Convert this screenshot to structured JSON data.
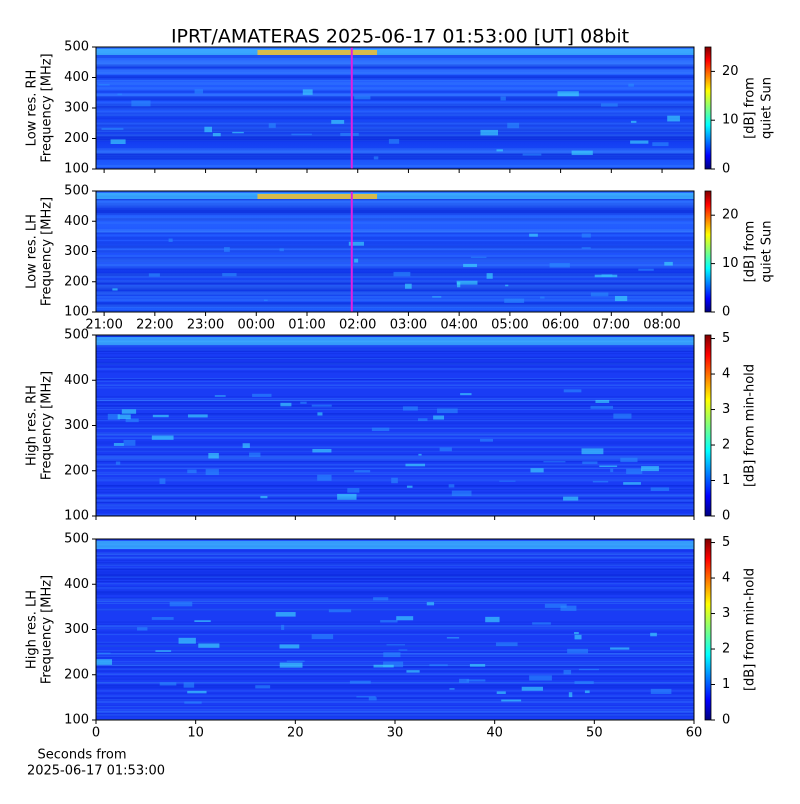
{
  "chart_data": [
    {
      "type": "heatmap",
      "title": "IPRT/AMATERAS 2025-06-17 01:53:00 [UT]   08bit",
      "ylabel": [
        "Low res. RH",
        "Frequency [MHz]"
      ],
      "xlim": [
        20.84,
        32.63
      ],
      "xticks": [
        {
          "value": 21,
          "label": "21:00"
        },
        {
          "value": 22,
          "label": "22:00"
        },
        {
          "value": 23,
          "label": "23:00"
        },
        {
          "value": 24,
          "label": "00:00"
        },
        {
          "value": 25,
          "label": "01:00"
        },
        {
          "value": 26,
          "label": "02:00"
        },
        {
          "value": 27,
          "label": "03:00"
        },
        {
          "value": 28,
          "label": "04:00"
        },
        {
          "value": 29,
          "label": "05:00"
        },
        {
          "value": 30,
          "label": "06:00"
        },
        {
          "value": 31,
          "label": "07:00"
        },
        {
          "value": 32,
          "label": "08:00"
        }
      ],
      "show_xtick_labels": false,
      "ylim": [
        100,
        500
      ],
      "yticks": [
        100,
        200,
        300,
        400,
        500
      ],
      "marker_x": 25.883,
      "marker_color": "#e020e0",
      "colorbar_lim": [
        0,
        25
      ],
      "colorbar_ticks": [
        0,
        10,
        20
      ],
      "colorbar_label": [
        "[dB] from",
        "quiet Sun"
      ]
    },
    {
      "type": "heatmap",
      "ylabel": [
        "Low res. LH",
        "Frequency [MHz]"
      ],
      "xlim": [
        20.84,
        32.63
      ],
      "xticks": [
        {
          "value": 21,
          "label": "21:00"
        },
        {
          "value": 22,
          "label": "22:00"
        },
        {
          "value": 23,
          "label": "23:00"
        },
        {
          "value": 24,
          "label": "00:00"
        },
        {
          "value": 25,
          "label": "01:00"
        },
        {
          "value": 26,
          "label": "02:00"
        },
        {
          "value": 27,
          "label": "03:00"
        },
        {
          "value": 28,
          "label": "04:00"
        },
        {
          "value": 29,
          "label": "05:00"
        },
        {
          "value": 30,
          "label": "06:00"
        },
        {
          "value": 31,
          "label": "07:00"
        },
        {
          "value": 32,
          "label": "08:00"
        }
      ],
      "show_xtick_labels": true,
      "ylim": [
        100,
        500
      ],
      "yticks": [
        100,
        200,
        300,
        400,
        500
      ],
      "marker_x": 25.883,
      "marker_color": "#e020e0",
      "colorbar_lim": [
        0,
        25
      ],
      "colorbar_ticks": [
        0,
        10,
        20
      ],
      "colorbar_label": [
        "[dB] from",
        "quiet Sun"
      ]
    },
    {
      "type": "heatmap",
      "ylabel": [
        "High res. RH",
        "Frequency [MHz]"
      ],
      "xlim": [
        0,
        60
      ],
      "xticks": [
        0,
        10,
        20,
        30,
        40,
        50,
        60
      ],
      "show_xtick_labels": false,
      "ylim": [
        100,
        500
      ],
      "yticks": [
        100,
        200,
        300,
        400,
        500
      ],
      "colorbar_lim": [
        0,
        5.1
      ],
      "colorbar_ticks": [
        0,
        1,
        2,
        3,
        4,
        5
      ],
      "colorbar_label": [
        "[dB] from min-hold"
      ]
    },
    {
      "type": "heatmap",
      "ylabel": [
        "High res. LH",
        "Frequency [MHz]"
      ],
      "xlabel": [
        "Seconds from",
        "2025-06-17 01:53:00"
      ],
      "xlim": [
        0,
        60
      ],
      "xticks": [
        0,
        10,
        20,
        30,
        40,
        50,
        60
      ],
      "show_xtick_labels": true,
      "ylim": [
        100,
        500
      ],
      "yticks": [
        100,
        200,
        300,
        400,
        500
      ],
      "colorbar_lim": [
        0,
        5.1
      ],
      "colorbar_ticks": [
        0,
        1,
        2,
        3,
        4,
        5
      ],
      "colorbar_label": [
        "[dB] from min-hold"
      ]
    }
  ]
}
